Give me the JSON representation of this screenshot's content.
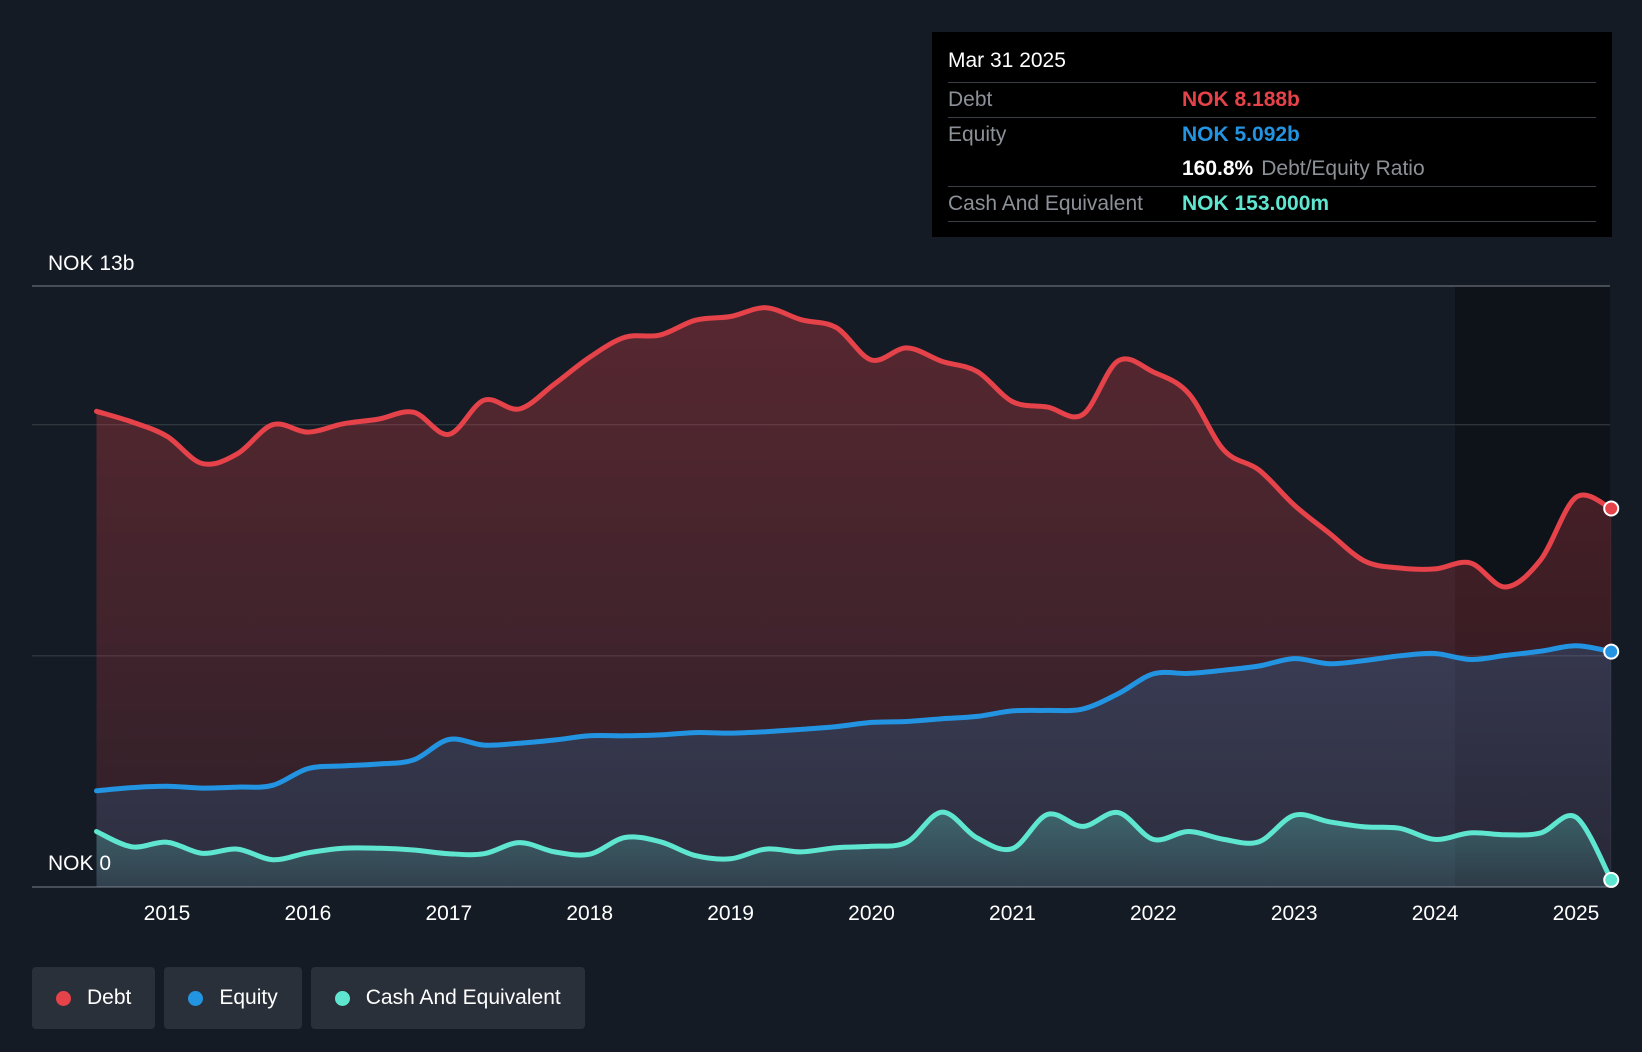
{
  "chart_data": {
    "type": "area",
    "currency": "NOK",
    "y_label_top": "NOK 13b",
    "y_label_bottom": "NOK 0",
    "ylim": [
      0,
      13
    ],
    "y_gridlines": [
      0,
      5,
      10,
      13
    ],
    "xlim": [
      2014.55,
      2025.3
    ],
    "x_ticks": [
      "2015",
      "2016",
      "2017",
      "2018",
      "2019",
      "2020",
      "2021",
      "2022",
      "2023",
      "2024",
      "2025"
    ],
    "series": [
      {
        "name": "Debt",
        "color": "#e5424a",
        "points": [
          [
            2014.5,
            10.29
          ],
          [
            2014.75,
            10.06
          ],
          [
            2015.0,
            9.75
          ],
          [
            2015.25,
            9.16
          ],
          [
            2015.5,
            9.37
          ],
          [
            2015.75,
            10.0
          ],
          [
            2016.0,
            9.84
          ],
          [
            2016.25,
            10.02
          ],
          [
            2016.5,
            10.12
          ],
          [
            2016.75,
            10.27
          ],
          [
            2017.0,
            9.79
          ],
          [
            2017.25,
            10.53
          ],
          [
            2017.5,
            10.34
          ],
          [
            2017.75,
            10.88
          ],
          [
            2018.0,
            11.46
          ],
          [
            2018.25,
            11.89
          ],
          [
            2018.5,
            11.94
          ],
          [
            2018.75,
            12.26
          ],
          [
            2019.0,
            12.34
          ],
          [
            2019.25,
            12.53
          ],
          [
            2019.5,
            12.27
          ],
          [
            2019.75,
            12.1
          ],
          [
            2020.0,
            11.4
          ],
          [
            2020.25,
            11.66
          ],
          [
            2020.5,
            11.37
          ],
          [
            2020.75,
            11.15
          ],
          [
            2021.0,
            10.5
          ],
          [
            2021.25,
            10.38
          ],
          [
            2021.5,
            10.22
          ],
          [
            2021.75,
            11.38
          ],
          [
            2022.0,
            11.14
          ],
          [
            2022.25,
            10.68
          ],
          [
            2022.5,
            9.45
          ],
          [
            2022.75,
            9.02
          ],
          [
            2023.0,
            8.26
          ],
          [
            2023.25,
            7.65
          ],
          [
            2023.5,
            7.05
          ],
          [
            2023.75,
            6.9
          ],
          [
            2024.0,
            6.88
          ],
          [
            2024.25,
            7.01
          ],
          [
            2024.5,
            6.49
          ],
          [
            2024.75,
            7.08
          ],
          [
            2025.0,
            8.43
          ],
          [
            2025.25,
            8.188
          ]
        ]
      },
      {
        "name": "Equity",
        "color": "#2394e1",
        "points": [
          [
            2014.5,
            2.08
          ],
          [
            2014.75,
            2.15
          ],
          [
            2015.0,
            2.18
          ],
          [
            2015.25,
            2.14
          ],
          [
            2015.5,
            2.16
          ],
          [
            2015.75,
            2.2
          ],
          [
            2016.0,
            2.56
          ],
          [
            2016.25,
            2.62
          ],
          [
            2016.5,
            2.66
          ],
          [
            2016.75,
            2.75
          ],
          [
            2017.0,
            3.19
          ],
          [
            2017.25,
            3.07
          ],
          [
            2017.5,
            3.11
          ],
          [
            2017.75,
            3.18
          ],
          [
            2018.0,
            3.27
          ],
          [
            2018.25,
            3.27
          ],
          [
            2018.5,
            3.29
          ],
          [
            2018.75,
            3.34
          ],
          [
            2019.0,
            3.33
          ],
          [
            2019.25,
            3.36
          ],
          [
            2019.5,
            3.41
          ],
          [
            2019.75,
            3.47
          ],
          [
            2020.0,
            3.56
          ],
          [
            2020.25,
            3.58
          ],
          [
            2020.5,
            3.64
          ],
          [
            2020.75,
            3.69
          ],
          [
            2021.0,
            3.81
          ],
          [
            2021.25,
            3.82
          ],
          [
            2021.5,
            3.85
          ],
          [
            2021.75,
            4.18
          ],
          [
            2022.0,
            4.61
          ],
          [
            2022.25,
            4.62
          ],
          [
            2022.5,
            4.69
          ],
          [
            2022.75,
            4.78
          ],
          [
            2023.0,
            4.94
          ],
          [
            2023.25,
            4.83
          ],
          [
            2023.5,
            4.9
          ],
          [
            2023.75,
            5.0
          ],
          [
            2024.0,
            5.05
          ],
          [
            2024.25,
            4.92
          ],
          [
            2024.5,
            5.01
          ],
          [
            2024.75,
            5.1
          ],
          [
            2025.0,
            5.22
          ],
          [
            2025.25,
            5.092
          ]
        ]
      },
      {
        "name": "Cash And Equivalent",
        "color": "#5fe6d0",
        "points": [
          [
            2014.5,
            1.2
          ],
          [
            2014.75,
            0.87
          ],
          [
            2015.0,
            0.97
          ],
          [
            2015.25,
            0.73
          ],
          [
            2015.5,
            0.82
          ],
          [
            2015.75,
            0.59
          ],
          [
            2016.0,
            0.74
          ],
          [
            2016.25,
            0.84
          ],
          [
            2016.5,
            0.84
          ],
          [
            2016.75,
            0.8
          ],
          [
            2017.0,
            0.72
          ],
          [
            2017.25,
            0.72
          ],
          [
            2017.5,
            0.96
          ],
          [
            2017.75,
            0.76
          ],
          [
            2018.0,
            0.71
          ],
          [
            2018.25,
            1.07
          ],
          [
            2018.5,
            0.98
          ],
          [
            2018.75,
            0.68
          ],
          [
            2019.0,
            0.61
          ],
          [
            2019.25,
            0.82
          ],
          [
            2019.5,
            0.76
          ],
          [
            2019.75,
            0.85
          ],
          [
            2020.0,
            0.88
          ],
          [
            2020.25,
            0.97
          ],
          [
            2020.5,
            1.62
          ],
          [
            2020.75,
            1.06
          ],
          [
            2021.0,
            0.83
          ],
          [
            2021.25,
            1.57
          ],
          [
            2021.5,
            1.31
          ],
          [
            2021.75,
            1.61
          ],
          [
            2022.0,
            1.03
          ],
          [
            2022.25,
            1.2
          ],
          [
            2022.5,
            1.03
          ],
          [
            2022.75,
            0.98
          ],
          [
            2023.0,
            1.55
          ],
          [
            2023.25,
            1.41
          ],
          [
            2023.5,
            1.3
          ],
          [
            2023.75,
            1.27
          ],
          [
            2024.0,
            1.03
          ],
          [
            2024.25,
            1.17
          ],
          [
            2024.5,
            1.13
          ],
          [
            2024.75,
            1.17
          ],
          [
            2025.0,
            1.51
          ],
          [
            2025.25,
            0.153
          ]
        ]
      }
    ],
    "annotation": {
      "date": "Mar 31 2025",
      "debt_label": "Debt",
      "debt_value": "NOK 8.188b",
      "equity_label": "Equity",
      "equity_value": "NOK 5.092b",
      "ratio_value": "160.8%",
      "ratio_label": "Debt/Equity Ratio",
      "cash_label": "Cash And Equivalent",
      "cash_value": "NOK 153.000m"
    }
  },
  "legend": [
    {
      "label": "Debt",
      "color": "#e5424a"
    },
    {
      "label": "Equity",
      "color": "#2394e1"
    },
    {
      "label": "Cash And Equivalent",
      "color": "#5fe6d0"
    }
  ],
  "colors": {
    "background": "#151b24",
    "debt": "#e5424a",
    "equity": "#2394e1",
    "cash": "#5fe6d0"
  }
}
